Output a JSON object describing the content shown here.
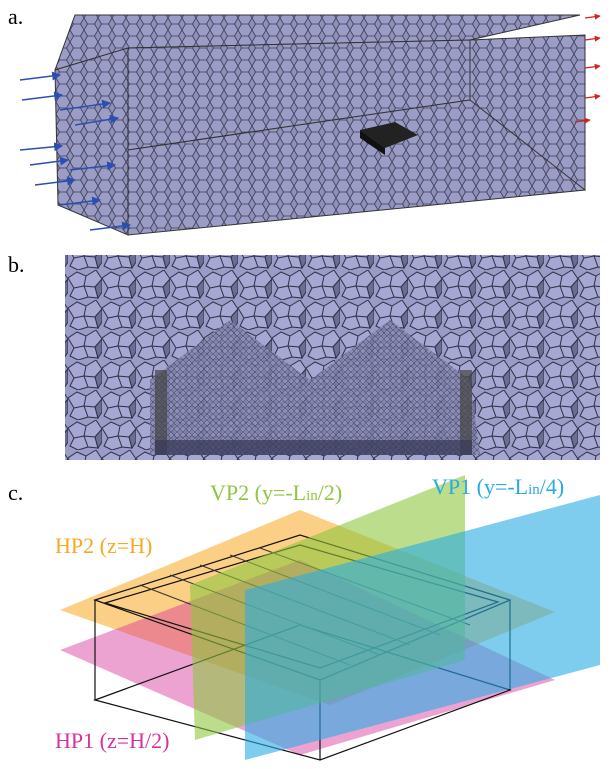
{
  "panels": [
    {
      "label": "a."
    },
    {
      "label": "b."
    },
    {
      "label": "c.",
      "planes": [
        {
          "name": {
            "prefix": "VP2 (y=-L",
            "subscript": "in",
            "suffix": "/2)"
          }
        },
        {
          "name": {
            "prefix": "VP1 (y=-L",
            "subscript": "in",
            "suffix": "/4)"
          }
        },
        {
          "name": {
            "prefix": "HP2 (z=H)"
          }
        },
        {
          "name": {
            "prefix": "HP1 (z=H/2)"
          }
        }
      ]
    }
  ]
}
